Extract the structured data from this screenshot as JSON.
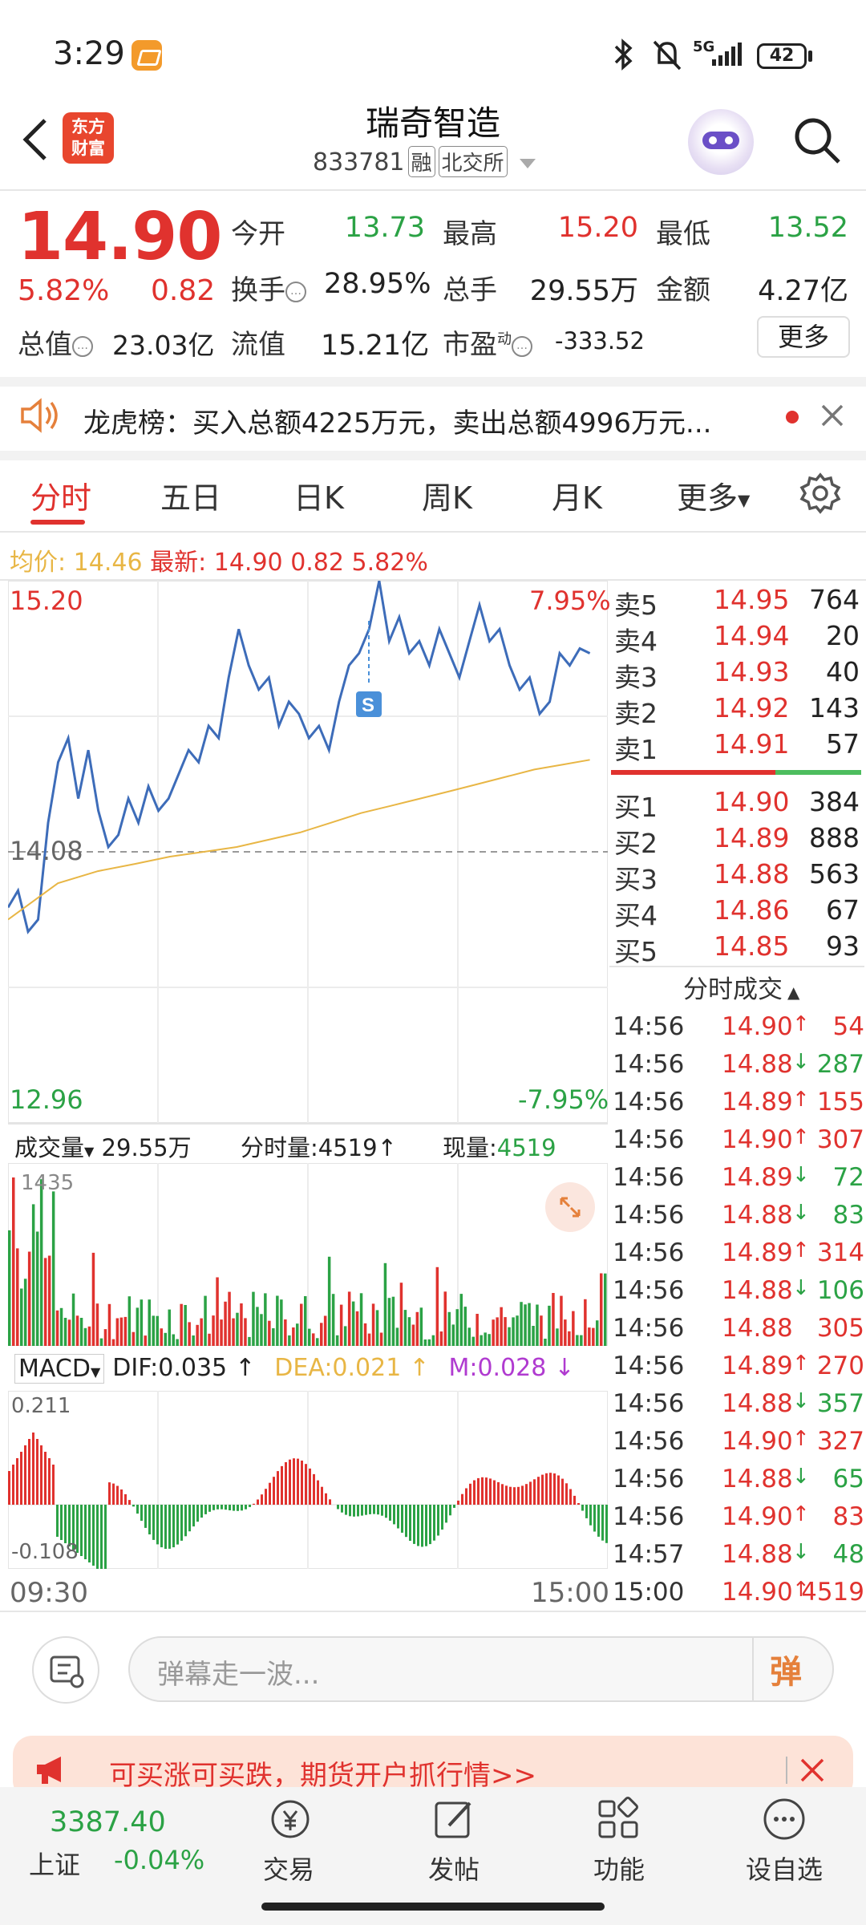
{
  "status_bar": {
    "time": "3:29",
    "network": "5G",
    "battery": "42"
  },
  "header": {
    "logo_line1": "东方",
    "logo_line2": "财富",
    "stock_name": "瑞奇智造",
    "stock_code": "833781",
    "tag_margin": "融",
    "tag_exchange": "北交所"
  },
  "quote": {
    "price": "14.90",
    "change_pct": "5.82%",
    "change": "0.82",
    "open_label": "今开",
    "open": "13.73",
    "high_label": "最高",
    "high": "15.20",
    "low_label": "最低",
    "low": "13.52",
    "turnover_label": "换手",
    "turnover": "28.95%",
    "volume_label": "总手",
    "volume": "29.55万",
    "amount_label": "金额",
    "amount": "4.27亿",
    "mktcap_label": "总值",
    "mktcap": "23.03亿",
    "float_label": "流值",
    "float": "15.21亿",
    "pe_label": "市盈",
    "pe_sup": "动",
    "pe": "-333.52",
    "more": "更多"
  },
  "news": {
    "text": "龙虎榜：买入总额4225万元，卖出总额4996万元..."
  },
  "tabs": [
    "分时",
    "五日",
    "日K",
    "周K",
    "月K",
    "更多"
  ],
  "info_line": {
    "avg_label": "均价:",
    "avg": "14.46",
    "latest_label": "最新:",
    "latest": "14.90",
    "change": "0.82",
    "pct": "5.82%"
  },
  "chart_data": {
    "type": "line",
    "title": "",
    "x_start": "09:30",
    "x_end": "15:00",
    "y_max": "15.20",
    "y_min": "12.96",
    "y_mid": "14.08",
    "pct_max": "7.95%",
    "pct_min": "-7.95%",
    "ylim": [
      12.96,
      15.2
    ],
    "series": [
      {
        "values": [
          13.85,
          13.92,
          13.75,
          13.8,
          14.2,
          14.45,
          14.55,
          14.3,
          14.5,
          14.25,
          14.1,
          14.15,
          14.3,
          14.2,
          14.35,
          14.25,
          14.3,
          14.4,
          14.5,
          14.45,
          14.6,
          14.55,
          14.8,
          15.0,
          14.85,
          14.75,
          14.8,
          14.6,
          14.7,
          14.65,
          14.55,
          14.6,
          14.5,
          14.7,
          14.85,
          14.9,
          15.0,
          15.2,
          14.95,
          15.05,
          14.9,
          14.95,
          14.85,
          15.0,
          14.9,
          14.8,
          14.95,
          15.1,
          14.95,
          15.0,
          14.85,
          14.75,
          14.8,
          14.65,
          14.7,
          14.9,
          14.85,
          14.92,
          14.9
        ]
      },
      {
        "values": [
          13.8,
          13.95,
          14.0,
          14.03,
          14.06,
          14.08,
          14.1,
          14.13,
          14.16,
          14.2,
          14.24,
          14.27,
          14.3,
          14.33,
          14.36,
          14.39,
          14.42,
          14.44,
          14.46
        ]
      }
    ]
  },
  "volume_panel": {
    "label": "成交量",
    "total": "29.55万",
    "period_label": "分时量:",
    "period": "4519",
    "now_label": "现量:",
    "now": "4519",
    "max": "1435"
  },
  "macd_panel": {
    "label": "MACD",
    "dif": "DIF:0.035",
    "dea": "DEA:0.021",
    "m": "M:0.028",
    "max": "0.211",
    "min": "-0.108"
  },
  "orderbook": {
    "asks": [
      {
        "label": "卖5",
        "price": "14.95",
        "vol": "764"
      },
      {
        "label": "卖4",
        "price": "14.94",
        "vol": "20"
      },
      {
        "label": "卖3",
        "price": "14.93",
        "vol": "40"
      },
      {
        "label": "卖2",
        "price": "14.92",
        "vol": "143"
      },
      {
        "label": "卖1",
        "price": "14.91",
        "vol": "57"
      }
    ],
    "bids": [
      {
        "label": "买1",
        "price": "14.90",
        "vol": "384"
      },
      {
        "label": "买2",
        "price": "14.89",
        "vol": "888"
      },
      {
        "label": "买3",
        "price": "14.88",
        "vol": "563"
      },
      {
        "label": "买4",
        "price": "14.86",
        "vol": "67"
      },
      {
        "label": "买5",
        "price": "14.85",
        "vol": "93"
      }
    ]
  },
  "ticks": {
    "title": "分时成交",
    "rows": [
      {
        "time": "14:56",
        "price": "14.90",
        "dir": "up",
        "vol": "54"
      },
      {
        "time": "14:56",
        "price": "14.88",
        "dir": "down",
        "vol": "287"
      },
      {
        "time": "14:56",
        "price": "14.89",
        "dir": "up",
        "vol": "155"
      },
      {
        "time": "14:56",
        "price": "14.90",
        "dir": "up",
        "vol": "307"
      },
      {
        "time": "14:56",
        "price": "14.89",
        "dir": "down",
        "vol": "72"
      },
      {
        "time": "14:56",
        "price": "14.88",
        "dir": "down",
        "vol": "83"
      },
      {
        "time": "14:56",
        "price": "14.89",
        "dir": "up",
        "vol": "314"
      },
      {
        "time": "14:56",
        "price": "14.88",
        "dir": "down",
        "vol": "106"
      },
      {
        "time": "14:56",
        "price": "14.88",
        "dir": "none",
        "vol": "305"
      },
      {
        "time": "14:56",
        "price": "14.89",
        "dir": "up",
        "vol": "270"
      },
      {
        "time": "14:56",
        "price": "14.88",
        "dir": "down",
        "vol": "357"
      },
      {
        "time": "14:56",
        "price": "14.90",
        "dir": "up",
        "vol": "327"
      },
      {
        "time": "14:56",
        "price": "14.88",
        "dir": "down",
        "vol": "65"
      },
      {
        "time": "14:56",
        "price": "14.90",
        "dir": "up",
        "vol": "83"
      },
      {
        "time": "14:57",
        "price": "14.88",
        "dir": "down",
        "vol": "48"
      },
      {
        "time": "15:00",
        "price": "14.90",
        "dir": "up",
        "vol": "4519"
      }
    ]
  },
  "danmaku": {
    "placeholder": "弹幕走一波...",
    "button": "弹"
  },
  "ad": {
    "text": "可买涨可买跌，期货开户抓行情>>"
  },
  "bottom_nav": {
    "index_value": "3387.40",
    "index_name": "上证",
    "index_change": "-0.04%",
    "items": [
      "交易",
      "发帖",
      "功能",
      "设自选"
    ]
  },
  "colors": {
    "up": "#e0322e",
    "down": "#2ba245",
    "price_line": "#3d6cb9",
    "avg_line": "#e8b645",
    "dea": "#e8b645",
    "m": "#b03bd0"
  }
}
